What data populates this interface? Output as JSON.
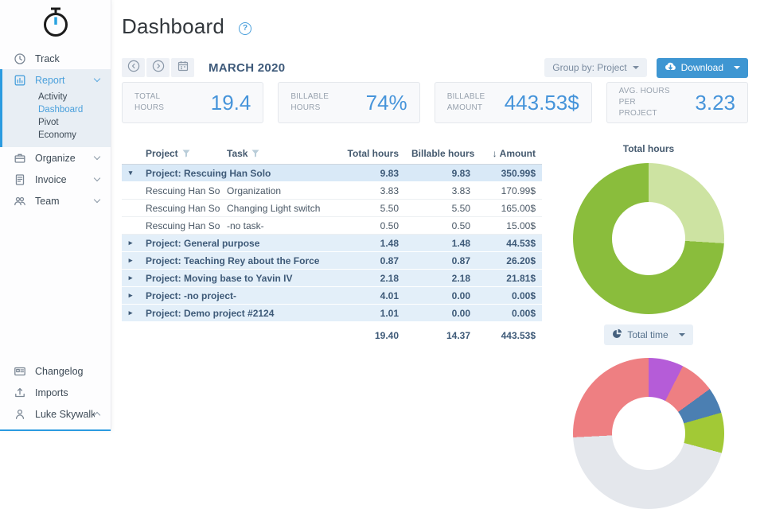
{
  "app": {
    "accent_blue": "#4aa0dc",
    "dark_slate": "#3e5a78"
  },
  "sidebar": {
    "logo": "stopwatch-logo",
    "items": [
      {
        "label": "Track",
        "icon": "clock"
      },
      {
        "label": "Report",
        "icon": "chart",
        "active": true,
        "expanded": true,
        "children": [
          {
            "label": "Activity"
          },
          {
            "label": "Dashboard",
            "active": true
          },
          {
            "label": "Pivot"
          },
          {
            "label": "Economy"
          }
        ]
      },
      {
        "label": "Organize",
        "icon": "briefcase",
        "collapsible": true
      },
      {
        "label": "Invoice",
        "icon": "invoice",
        "collapsible": true
      },
      {
        "label": "Team",
        "icon": "team",
        "collapsible": true
      }
    ],
    "bottom_items": [
      {
        "label": "Changelog",
        "icon": "changelog"
      },
      {
        "label": "Imports",
        "icon": "imports"
      },
      {
        "label": "Luke Skywalker",
        "icon": "user",
        "chevron": "up"
      }
    ]
  },
  "header": {
    "title": "Dashboard",
    "help": "?"
  },
  "toolbar": {
    "month": "MARCH 2020",
    "group_by": "Group by: Project",
    "download": "Download",
    "nav_buttons": [
      "previous-month",
      "next-month",
      "calendar"
    ]
  },
  "stats": [
    {
      "label": "TOTAL HOURS",
      "value": "19.4"
    },
    {
      "label": "BILLABLE HOURS",
      "value": "74%"
    },
    {
      "label": "BILLABLE AMOUNT",
      "value": "443.53$"
    },
    {
      "label": "AVG. HOURS PER PROJECT",
      "value": "3.23"
    }
  ],
  "table": {
    "columns": [
      {
        "label": "Project",
        "filter": true,
        "align": "left"
      },
      {
        "label": "Task",
        "filter": true,
        "align": "left"
      },
      {
        "label": "Total hours",
        "align": "right"
      },
      {
        "label": "Billable hours",
        "align": "right"
      },
      {
        "label": "Amount",
        "align": "right",
        "sort": "desc"
      }
    ],
    "rows": [
      {
        "type": "group",
        "expanded": true,
        "project": "Project: Rescuing Han Solo",
        "task": "",
        "total_hours": "9.83",
        "billable_hours": "9.83",
        "amount": "350.99$"
      },
      {
        "type": "detail",
        "project": "Rescuing Han Solo",
        "task": "Organization",
        "total_hours": "3.83",
        "billable_hours": "3.83",
        "amount": "170.99$"
      },
      {
        "type": "detail",
        "project": "Rescuing Han Solo",
        "task": "Changing Light switch",
        "total_hours": "5.50",
        "billable_hours": "5.50",
        "amount": "165.00$"
      },
      {
        "type": "detail",
        "project": "Rescuing Han Solo",
        "task": "-no task-",
        "total_hours": "0.50",
        "billable_hours": "0.50",
        "amount": "15.00$"
      },
      {
        "type": "group",
        "expanded": false,
        "project": "Project: General purpose",
        "task": "",
        "total_hours": "1.48",
        "billable_hours": "1.48",
        "amount": "44.53$"
      },
      {
        "type": "group",
        "expanded": false,
        "project": "Project: Teaching Rey about the Force",
        "task": "",
        "total_hours": "0.87",
        "billable_hours": "0.87",
        "amount": "26.20$"
      },
      {
        "type": "group",
        "expanded": false,
        "project": "Project: Moving base to Yavin IV",
        "task": "",
        "total_hours": "2.18",
        "billable_hours": "2.18",
        "amount": "21.81$"
      },
      {
        "type": "group",
        "expanded": false,
        "project": "Project: -no project-",
        "task": "",
        "total_hours": "4.01",
        "billable_hours": "0.00",
        "amount": "0.00$"
      },
      {
        "type": "group",
        "expanded": false,
        "project": "Project: Demo project #2124",
        "task": "",
        "total_hours": "1.01",
        "billable_hours": "0.00",
        "amount": "0.00$"
      }
    ],
    "totals": {
      "total_hours": "19.40",
      "billable_hours": "14.37",
      "amount": "443.53$"
    }
  },
  "charts": {
    "total_hours_title": "Total hours",
    "total_time_button": "Total time"
  },
  "chart_data": [
    {
      "type": "donut",
      "title": "Total hours",
      "start_deg": 0,
      "segments": [
        {
          "color": "#cde3a2",
          "deg": 93.6,
          "approx_percent": 26
        },
        {
          "color": "#8abd3c",
          "deg": 266.4,
          "approx_percent": 74
        }
      ]
    },
    {
      "type": "donut",
      "title": "",
      "partially_visible": "top half only, clipped by viewport bottom",
      "start_deg": 267,
      "segments": [
        {
          "color": "#8ecfee",
          "deg": 6
        },
        {
          "color": "#2ec52e",
          "deg": 77
        },
        {
          "color": "#b55cd8",
          "deg": 37
        },
        {
          "color": "#ee7f82",
          "deg": 27
        },
        {
          "color": "#4b7fb2",
          "deg": 20
        },
        {
          "color": "#a2c936",
          "deg": 31
        },
        {
          "color": "#e4e7ec",
          "deg": 162,
          "hidden": true
        }
      ]
    }
  ]
}
